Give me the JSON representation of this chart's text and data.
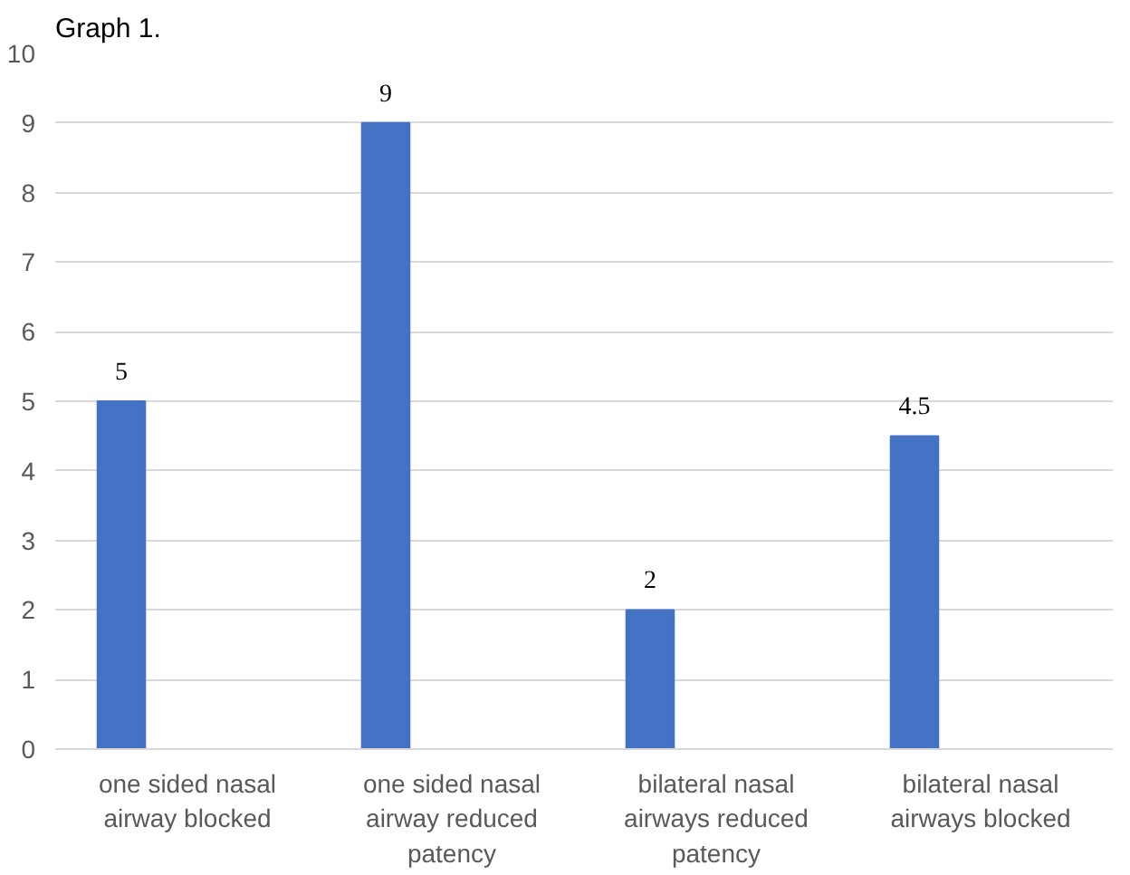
{
  "chart_data": {
    "type": "bar",
    "title": "Graph 1.",
    "categories": [
      "one sided nasal airway blocked",
      "one sided nasal airway reduced patency",
      "bilateral nasal airways reduced patency",
      "bilateral nasal airways blocked"
    ],
    "values": [
      5,
      9,
      2,
      4.5
    ],
    "color": "#4472c4",
    "ylim": [
      0,
      10
    ],
    "yticks": [
      0,
      1,
      2,
      3,
      4,
      5,
      6,
      7,
      8,
      9,
      10
    ],
    "grid": "y",
    "data_labels": true
  }
}
